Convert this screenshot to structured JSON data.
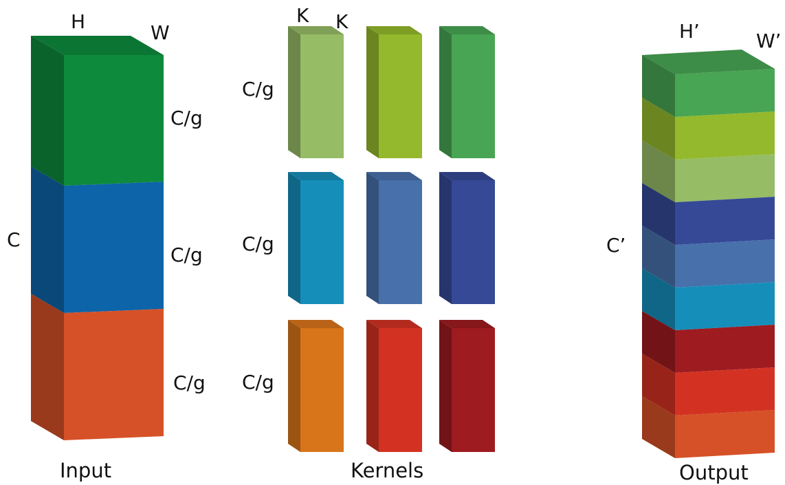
{
  "colors": {
    "dark_green": "#0d8a3c",
    "green": "#48a553",
    "lime": "#94b92c",
    "light_green": "#96bc66",
    "blue": "#0e64a8",
    "cyan": "#168eba",
    "steel_blue": "#4870ab",
    "navy": "#354996",
    "orange_red": "#d65127",
    "orange": "#d8751b",
    "red": "#d33223",
    "dark_red": "#9e1b20"
  },
  "input": {
    "caption": "Input",
    "height_label": "H",
    "width_label": "W",
    "channel_label": "C",
    "group_labels": [
      "C/g",
      "C/g",
      "C/g"
    ],
    "blocks": [
      {
        "color": "dark_green"
      },
      {
        "color": "blue"
      },
      {
        "color": "orange_red"
      }
    ]
  },
  "kernels": {
    "caption": "Kernels",
    "size_labels": [
      "K",
      "K"
    ],
    "group_labels": [
      "C/g",
      "C/g",
      "C/g"
    ],
    "rows": [
      [
        "light_green",
        "lime",
        "green"
      ],
      [
        "cyan",
        "steel_blue",
        "navy"
      ],
      [
        "orange",
        "red",
        "dark_red"
      ]
    ]
  },
  "output": {
    "caption": "Output",
    "height_label": "H’",
    "width_label": "W’",
    "channel_label": "C’",
    "slices": [
      "green",
      "lime",
      "light_green",
      "navy",
      "steel_blue",
      "cyan",
      "dark_red",
      "red",
      "orange_red"
    ]
  }
}
